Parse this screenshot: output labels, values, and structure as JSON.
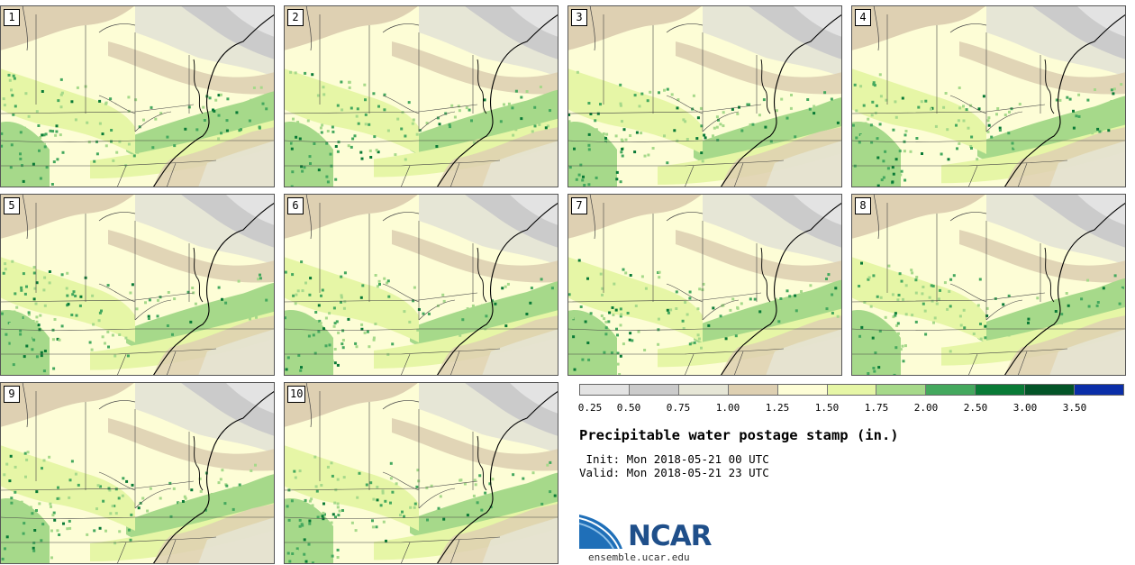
{
  "stamps": [
    {
      "label": "1"
    },
    {
      "label": "2"
    },
    {
      "label": "3"
    },
    {
      "label": "4"
    },
    {
      "label": "5"
    },
    {
      "label": "6"
    },
    {
      "label": "7"
    },
    {
      "label": "8"
    },
    {
      "label": "9"
    },
    {
      "label": "10"
    }
  ],
  "colorbar": {
    "colors": [
      "#e3e3e3",
      "#cbcbcb",
      "#e6e6d6",
      "#ded0b2",
      "#fdfdd6",
      "#e6f6a6",
      "#a6d98a",
      "#44a85e",
      "#097a36",
      "#035428",
      "#0a2ea8"
    ],
    "tick_labels": [
      "0.25",
      "0.50",
      "0.75",
      "1.00",
      "1.25",
      "1.50",
      "1.75",
      "2.00",
      "2.50",
      "3.00",
      "3.50"
    ]
  },
  "title": "Precipitable water postage stamp (in.)",
  "init_line": " Init: Mon 2018-05-21 00 UTC",
  "valid_line": "Valid: Mon 2018-05-21 23 UTC",
  "logo": {
    "text": "NCAR",
    "url": "ensemble.ucar.edu"
  }
}
